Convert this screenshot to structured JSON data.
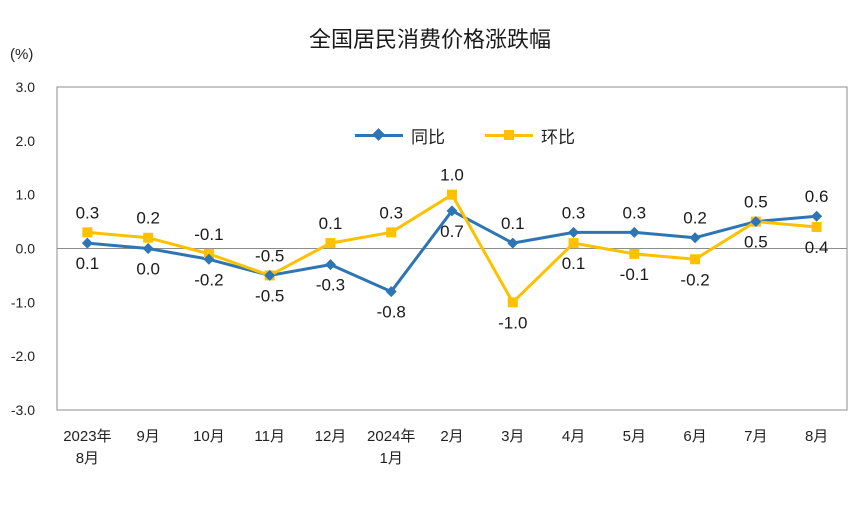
{
  "chart_data": {
    "type": "line",
    "title": "全国居民消费价格涨跌幅",
    "unit_label": "(%)",
    "categories": [
      [
        "2023年",
        "8月"
      ],
      [
        "9月"
      ],
      [
        "10月"
      ],
      [
        "11月"
      ],
      [
        "12月"
      ],
      [
        "2024年",
        "1月"
      ],
      [
        "2月"
      ],
      [
        "3月"
      ],
      [
        "4月"
      ],
      [
        "5月"
      ],
      [
        "6月"
      ],
      [
        "7月"
      ],
      [
        "8月"
      ]
    ],
    "y_ticks": [
      "3.0",
      "2.0",
      "1.0",
      "0.0",
      "-1.0",
      "-2.0",
      "-3.0"
    ],
    "ylim": [
      -3,
      3
    ],
    "grid": false,
    "legend_position": "top-center",
    "series": [
      {
        "name": "同比",
        "color": "#2e75b6",
        "marker": "diamond",
        "values": [
          0.1,
          0.0,
          -0.2,
          -0.5,
          -0.3,
          -0.8,
          0.7,
          0.1,
          0.3,
          0.3,
          0.2,
          0.5,
          0.6
        ],
        "labels": [
          "0.1",
          "0.0",
          "-0.2",
          "-0.5",
          "-0.3",
          "-0.8",
          "0.7",
          "0.1",
          "0.3",
          "0.3",
          "0.2",
          "0.5",
          "0.6"
        ]
      },
      {
        "name": "环比",
        "color": "#ffc000",
        "marker": "square",
        "values": [
          0.3,
          0.2,
          -0.1,
          -0.5,
          0.1,
          0.3,
          1.0,
          -1.0,
          0.1,
          -0.1,
          -0.2,
          0.5,
          0.4
        ],
        "labels": [
          "0.3",
          "0.2",
          "-0.1",
          "-0.5",
          "0.1",
          "0.3",
          "1.0",
          "-1.0",
          "0.1",
          "-0.1",
          "-0.2",
          "0.5",
          "0.4"
        ]
      }
    ]
  }
}
